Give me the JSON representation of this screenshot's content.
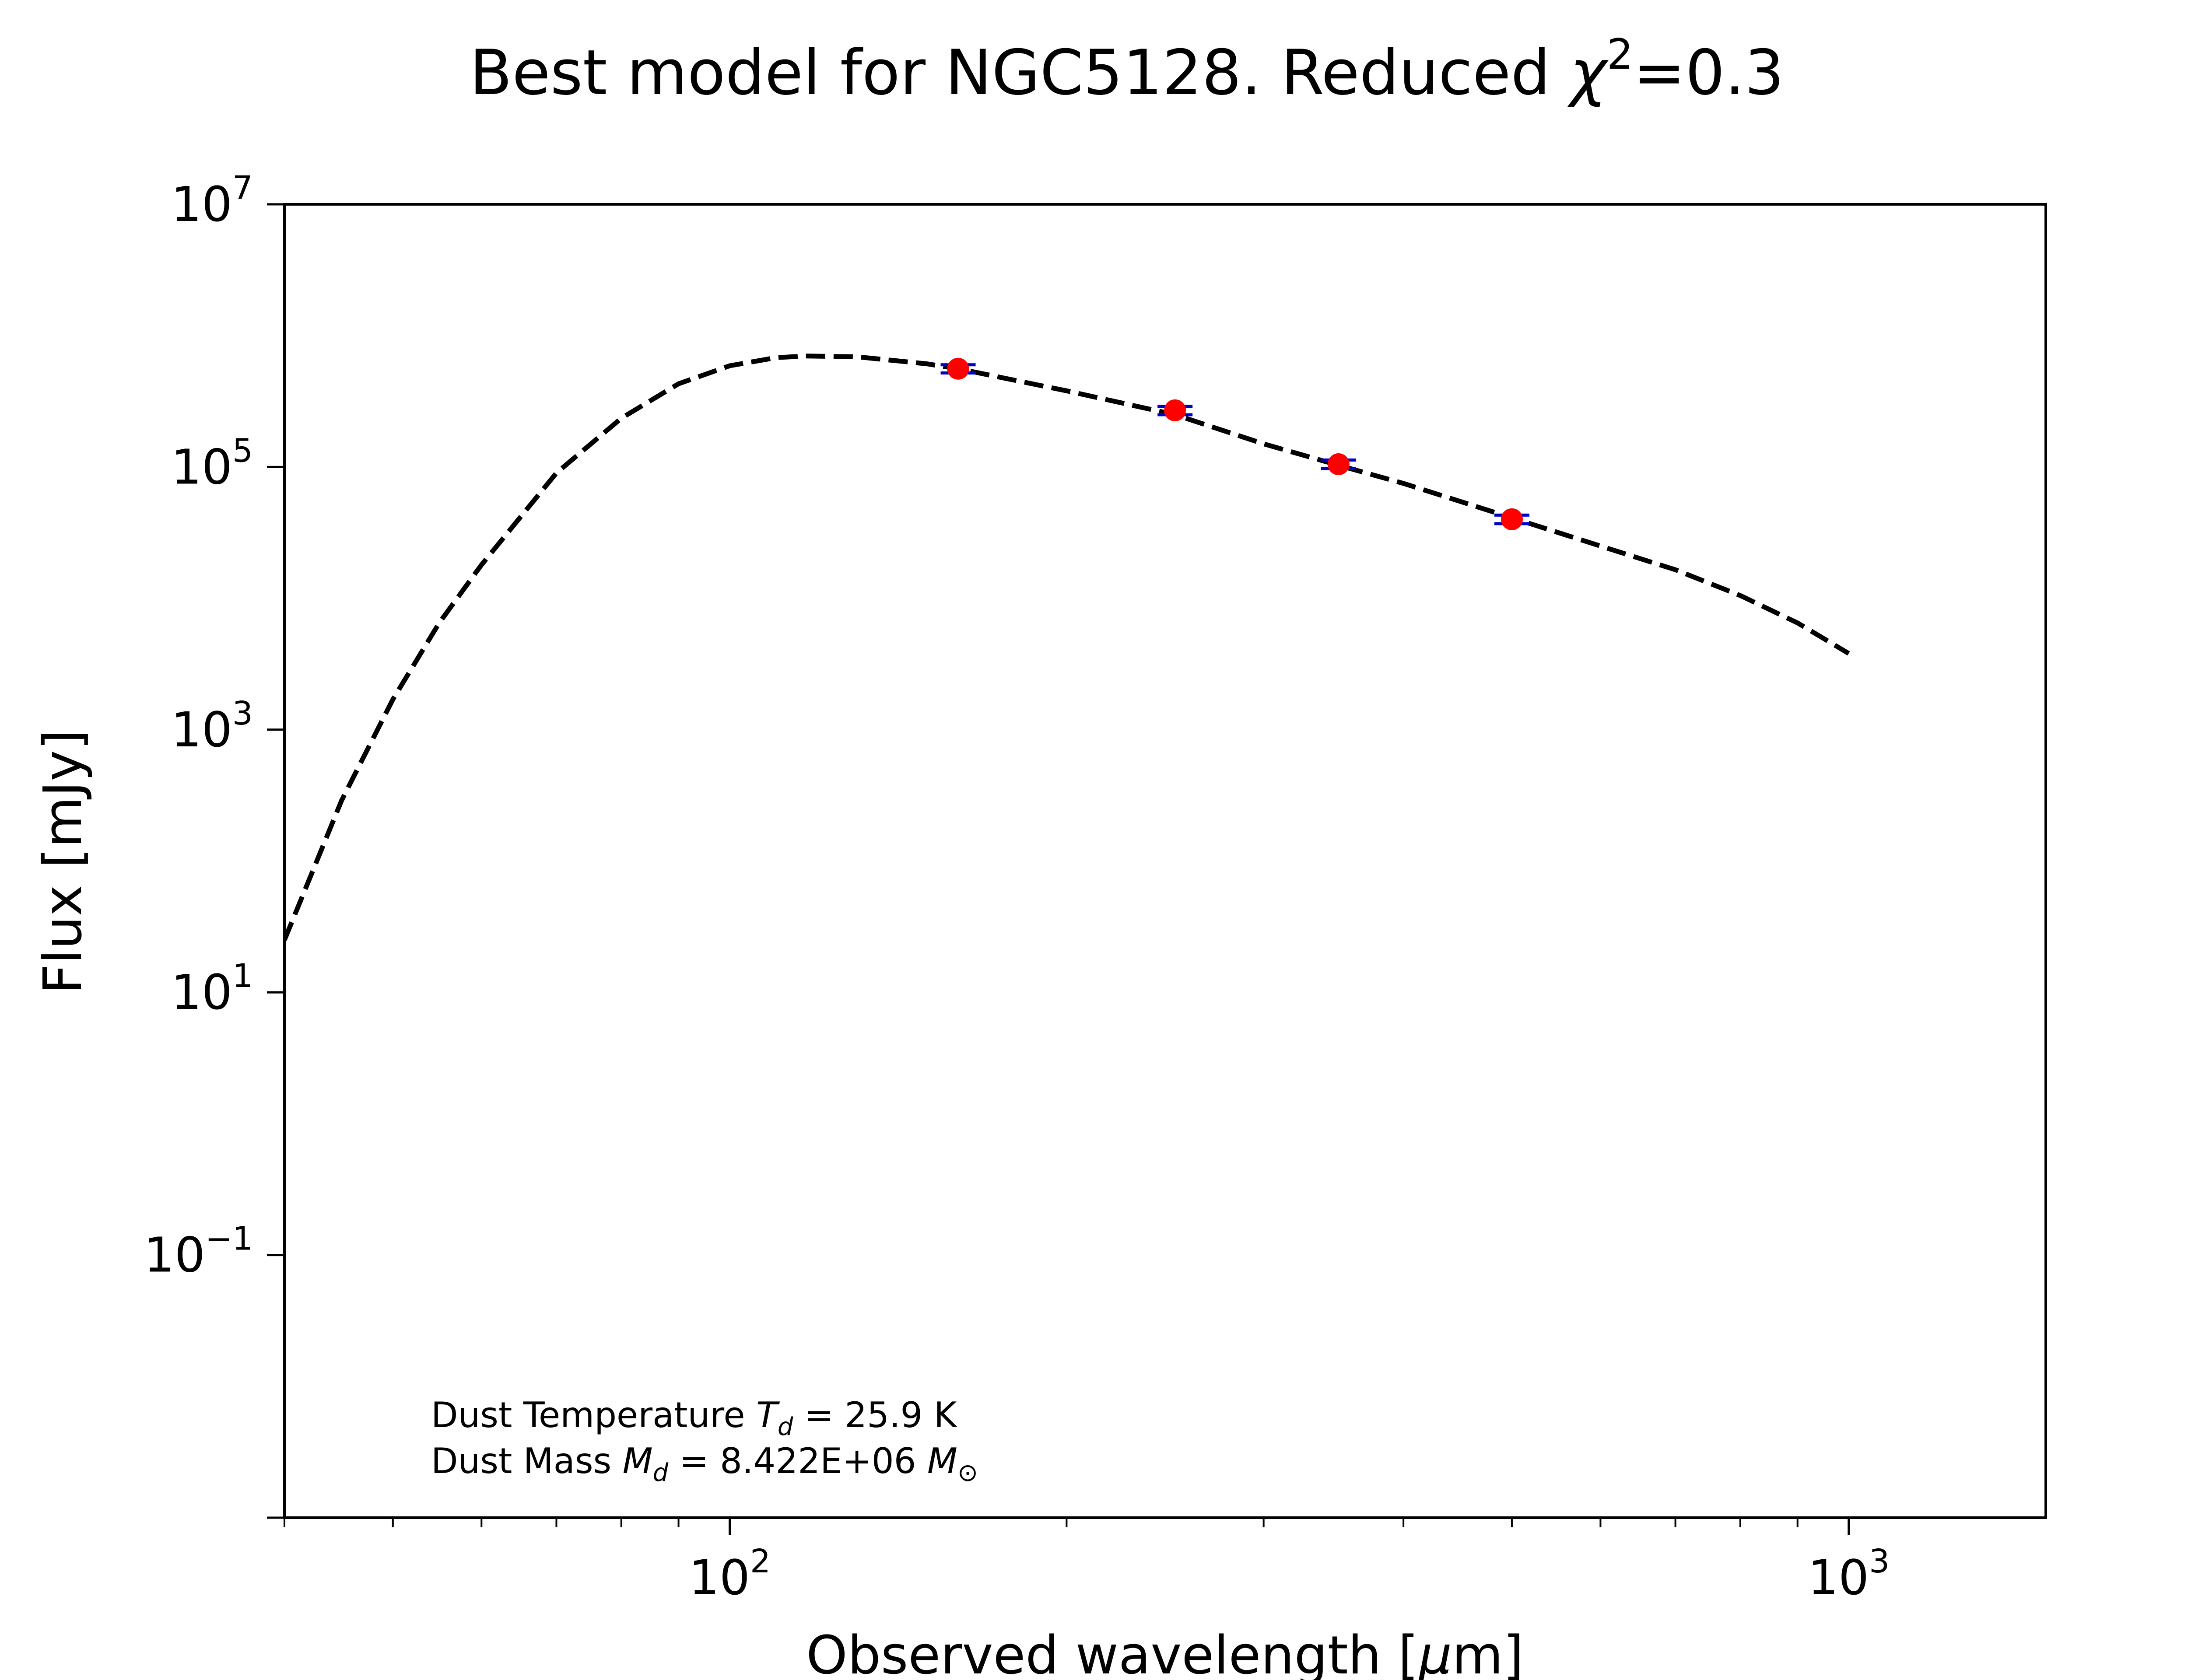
{
  "chart_data": {
    "type": "scatter",
    "title": "Best model for NGC5128. Reduced χ²=0.3",
    "title_parts": {
      "main": "Best model for NGC5128. Reduced ",
      "chi": "χ",
      "sup": "2",
      "tail": "=0.3"
    },
    "xlabel": "Observed wavelength [μm]",
    "xlabel_parts": {
      "pre": "Observed wavelength [",
      "mu": "μ",
      "post": "m]"
    },
    "ylabel": "Flux [mJy]",
    "xscale": "log",
    "yscale": "log",
    "xlim": [
      40,
      1500
    ],
    "ylim": [
      0.001,
      10000000
    ],
    "x_ticks": [
      {
        "value": 100,
        "base": "10",
        "exp": "2"
      },
      {
        "value": 1000,
        "base": "10",
        "exp": "3"
      }
    ],
    "y_ticks": [
      {
        "value": 0.1,
        "base": "10",
        "exp": "−1"
      },
      {
        "value": 10,
        "base": "10",
        "exp": "1"
      },
      {
        "value": 1000,
        "base": "10",
        "exp": "3"
      },
      {
        "value": 100000,
        "base": "10",
        "exp": "5"
      },
      {
        "value": 10000000,
        "base": "10",
        "exp": "7"
      }
    ],
    "grid": false,
    "series": [
      {
        "role": "model",
        "style": "dashed-line",
        "color": "#000000",
        "x": [
          40,
          45,
          50,
          55,
          60,
          70,
          80,
          90,
          100,
          110,
          117,
          130,
          150,
          160,
          200,
          250,
          300,
          350,
          400,
          500,
          600,
          700,
          800,
          900,
          1000
        ],
        "y": [
          25,
          290,
          1700,
          6500,
          18000,
          90000,
          235000,
          430000,
          590000,
          680000,
          700000,
          690000,
          610000,
          560000,
          380000,
          250000,
          150000,
          103000,
          75000,
          41000,
          25000,
          16500,
          10500,
          6500,
          3800
        ]
      },
      {
        "role": "observations",
        "style": "markers-with-errorbars",
        "marker_color": "#ff0000",
        "errorbar_color": "#0000cc",
        "x": [
          160,
          250,
          350,
          500
        ],
        "y": [
          560000,
          270000,
          105000,
          40000
        ],
        "yerr": [
          40000,
          20000,
          8000,
          3000
        ]
      }
    ],
    "annotations": {
      "line1": {
        "pre": "Dust Temperature ",
        "sym": "T",
        "sub": "d",
        "post": " = 25.9 K"
      },
      "line2": {
        "pre": "Dust Mass ",
        "sym": "M",
        "sub": "d",
        "mid": " = 8.422E+06 ",
        "sym2": "M",
        "sub2": "⊙"
      }
    }
  }
}
